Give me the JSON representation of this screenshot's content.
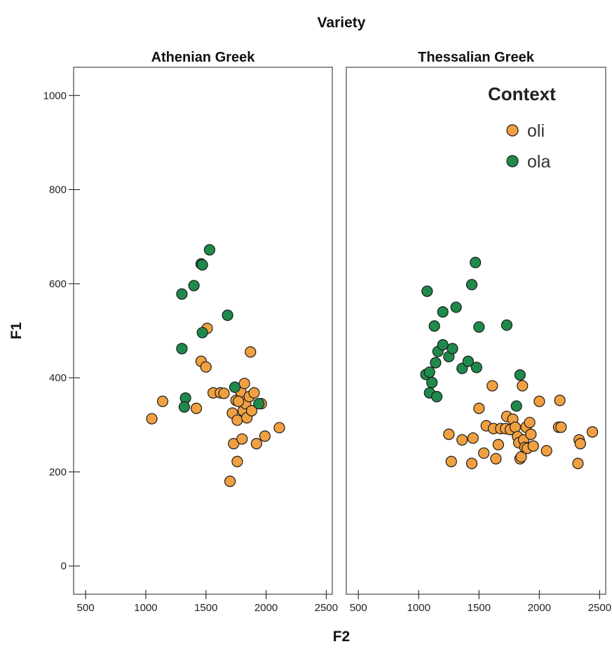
{
  "chart_data": {
    "type": "scatter",
    "title": "Variety",
    "xlabel": "F2",
    "ylabel": "F1",
    "xlim": [
      400,
      2550
    ],
    "ylim": [
      -60,
      1060
    ],
    "xticks": [
      500,
      1000,
      1500,
      2000,
      2500
    ],
    "yticks": [
      0,
      200,
      400,
      600,
      800,
      1000
    ],
    "legend": {
      "title": "Context",
      "placement": "top-right",
      "items": [
        {
          "label": "oli",
          "color": "#f0a040"
        },
        {
          "label": "ola",
          "color": "#1f8a4c"
        }
      ]
    },
    "panels": [
      {
        "name": "Athenian Greek",
        "series": [
          {
            "name": "oli",
            "color": "#f0a040",
            "points": [
              [
                1050,
                313
              ],
              [
                1140,
                350
              ],
              [
                1420,
                335
              ],
              [
                1460,
                435
              ],
              [
                1500,
                423
              ],
              [
                1510,
                505
              ],
              [
                1560,
                368
              ],
              [
                1620,
                368
              ],
              [
                1650,
                367
              ],
              [
                1700,
                180
              ],
              [
                1720,
                325
              ],
              [
                1730,
                260
              ],
              [
                1750,
                352
              ],
              [
                1760,
                310
              ],
              [
                1760,
                222
              ],
              [
                1800,
                270
              ],
              [
                1790,
                370
              ],
              [
                1810,
                330
              ],
              [
                1820,
                388
              ],
              [
                1830,
                345
              ],
              [
                1840,
                315
              ],
              [
                1860,
                360
              ],
              [
                1870,
                455
              ],
              [
                1880,
                330
              ],
              [
                1900,
                368
              ],
              [
                1920,
                260
              ],
              [
                1960,
                345
              ],
              [
                1990,
                276
              ],
              [
                2110,
                294
              ],
              [
                1770,
                350
              ]
            ]
          },
          {
            "name": "ola",
            "color": "#1f8a4c",
            "points": [
              [
                1300,
                578
              ],
              [
                1400,
                596
              ],
              [
                1460,
                642
              ],
              [
                1470,
                640
              ],
              [
                1530,
                672
              ],
              [
                1680,
                533
              ],
              [
                1300,
                462
              ],
              [
                1470,
                496
              ],
              [
                1330,
                357
              ],
              [
                1320,
                338
              ],
              [
                1740,
                380
              ],
              [
                1940,
                345
              ]
            ]
          }
        ]
      },
      {
        "name": "Thessalian Greek",
        "series": [
          {
            "name": "oli",
            "color": "#f0a040",
            "points": [
              [
                1250,
                280
              ],
              [
                1270,
                222
              ],
              [
                1360,
                268
              ],
              [
                1440,
                218
              ],
              [
                1450,
                272
              ],
              [
                1500,
                335
              ],
              [
                1540,
                240
              ],
              [
                1560,
                298
              ],
              [
                1610,
                383
              ],
              [
                1620,
                292
              ],
              [
                1640,
                228
              ],
              [
                1660,
                258
              ],
              [
                1680,
                292
              ],
              [
                1720,
                292
              ],
              [
                1730,
                318
              ],
              [
                1760,
                290
              ],
              [
                1780,
                312
              ],
              [
                1800,
                295
              ],
              [
                1820,
                275
              ],
              [
                1830,
                262
              ],
              [
                1840,
                228
              ],
              [
                1850,
                232
              ],
              [
                1860,
                383
              ],
              [
                1870,
                268
              ],
              [
                1880,
                252
              ],
              [
                1890,
                295
              ],
              [
                1900,
                250
              ],
              [
                1920,
                305
              ],
              [
                1930,
                280
              ],
              [
                1950,
                255
              ],
              [
                2000,
                350
              ],
              [
                2060,
                245
              ],
              [
                2160,
                295
              ],
              [
                2170,
                352
              ],
              [
                2180,
                295
              ],
              [
                2320,
                218
              ],
              [
                2330,
                268
              ],
              [
                2340,
                260
              ],
              [
                2440,
                285
              ]
            ]
          },
          {
            "name": "ola",
            "color": "#1f8a4c",
            "points": [
              [
                1060,
                407
              ],
              [
                1070,
                584
              ],
              [
                1090,
                412
              ],
              [
                1090,
                368
              ],
              [
                1110,
                390
              ],
              [
                1130,
                510
              ],
              [
                1140,
                432
              ],
              [
                1160,
                456
              ],
              [
                1150,
                360
              ],
              [
                1200,
                540
              ],
              [
                1200,
                470
              ],
              [
                1250,
                445
              ],
              [
                1280,
                462
              ],
              [
                1310,
                550
              ],
              [
                1360,
                420
              ],
              [
                1410,
                435
              ],
              [
                1440,
                598
              ],
              [
                1470,
                645
              ],
              [
                1480,
                422
              ],
              [
                1500,
                508
              ],
              [
                1730,
                512
              ],
              [
                1840,
                406
              ],
              [
                1810,
                340
              ]
            ]
          }
        ]
      }
    ]
  }
}
